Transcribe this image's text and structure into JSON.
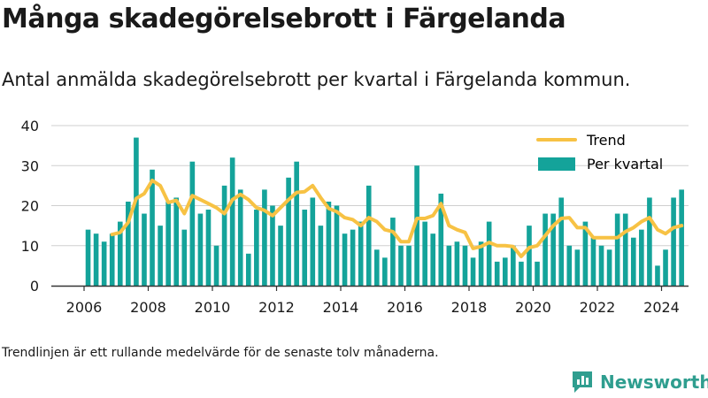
{
  "header": {
    "title": "Många skadegörelsebrott i Färgelanda",
    "subtitle": "Antal anmälda skadegörelsebrott per kvartal i Färgelanda kommun."
  },
  "footer": {
    "note": "Trendlinjen är ett rullande medelvärde för de senaste tolv månaderna.",
    "brand": "Newsworthy"
  },
  "colors": {
    "bars": "#14a39a",
    "trend": "#f7c244",
    "brand": "#2f9e8f",
    "text": "#1a1a1a",
    "axis": "#333333"
  },
  "chart_data": {
    "type": "bar",
    "x_start": 2006,
    "quarters_per_year": 4,
    "xticks": [
      2006,
      2008,
      2010,
      2012,
      2014,
      2016,
      2018,
      2020,
      2022,
      2024
    ],
    "yticks": [
      0,
      10,
      20,
      30,
      40
    ],
    "ylim": [
      0,
      40
    ],
    "grid": true,
    "legend_position": "top-right",
    "series": [
      {
        "name": "Per kvartal",
        "type": "bar",
        "values": [
          14,
          13,
          11,
          13,
          16,
          21,
          37,
          18,
          29,
          15,
          21,
          22,
          14,
          31,
          18,
          19,
          10,
          25,
          32,
          24,
          8,
          19,
          24,
          20,
          15,
          27,
          31,
          19,
          22,
          15,
          21,
          20,
          13,
          14,
          16,
          25,
          9,
          7,
          17,
          10,
          10,
          30,
          16,
          13,
          23,
          10,
          11,
          10,
          7,
          11,
          16,
          6,
          7,
          10,
          6,
          15,
          6,
          18,
          18,
          22,
          10,
          9,
          16,
          12,
          10,
          9,
          18,
          18,
          12,
          14,
          22,
          5,
          9,
          22,
          24
        ]
      },
      {
        "name": "Trend",
        "type": "line",
        "values": [
          null,
          null,
          null,
          12.8,
          13.3,
          15.8,
          21.8,
          23.0,
          26.3,
          25.0,
          20.8,
          21.3,
          18.0,
          22.5,
          21.5,
          20.5,
          19.5,
          18.0,
          21.5,
          22.8,
          21.5,
          19.5,
          18.8,
          17.5,
          19.5,
          21.5,
          23.3,
          23.5,
          25.0,
          22.0,
          19.3,
          18.5,
          17.0,
          16.5,
          15.0,
          17.0,
          16.0,
          14.0,
          13.5,
          11.0,
          11.0,
          16.8,
          16.8,
          17.5,
          20.5,
          15.0,
          14.0,
          13.3,
          9.3,
          9.8,
          10.8,
          10.0,
          10.0,
          9.8,
          7.3,
          9.5,
          10.0,
          12.5,
          15.0,
          16.8,
          17.0,
          14.5,
          14.5,
          12.0,
          12.0,
          12.0,
          12.0,
          13.5,
          14.5,
          16.0,
          17.0,
          14.0,
          13.0,
          14.5,
          15.0
        ]
      }
    ]
  }
}
